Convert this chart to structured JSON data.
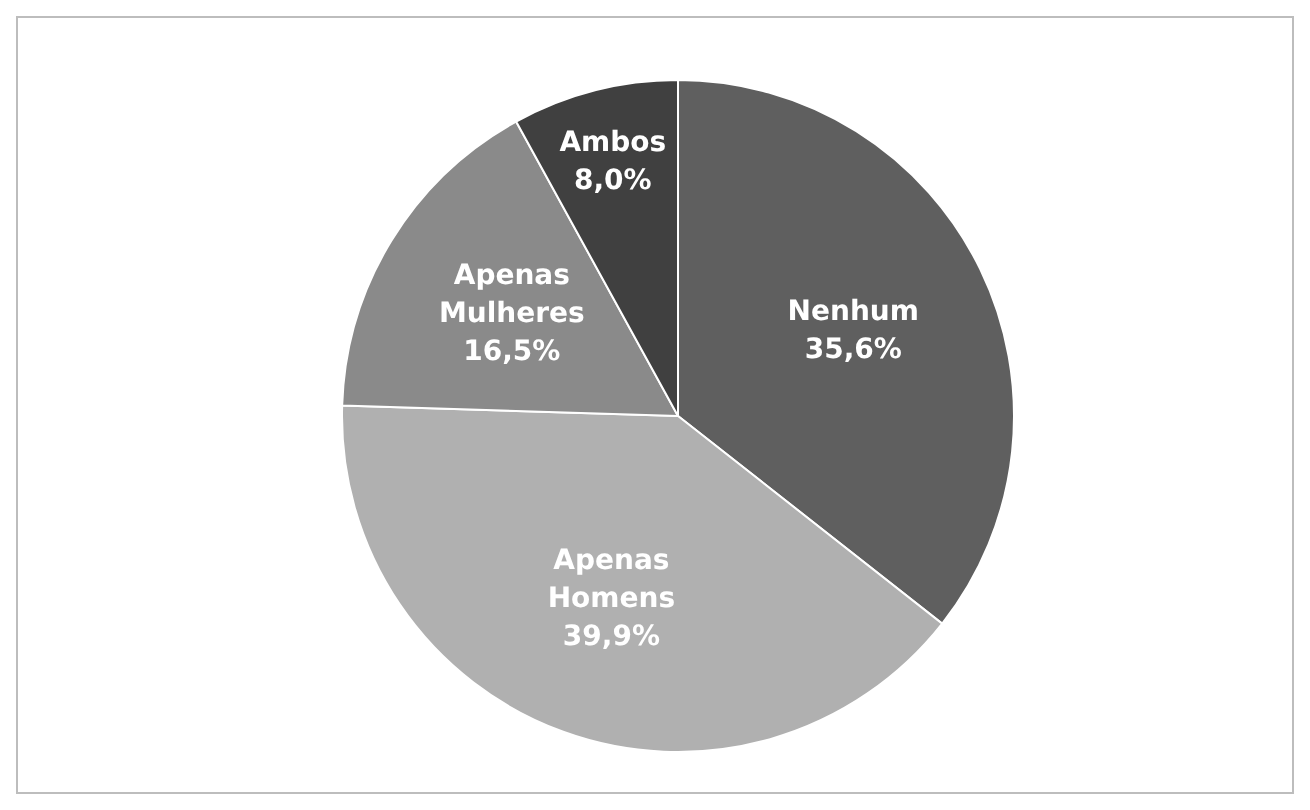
{
  "chart_data": {
    "type": "pie",
    "categories": [
      "Nenhum",
      "Apenas Homens",
      "Apenas Mulheres",
      "Ambos"
    ],
    "values": [
      35.6,
      39.9,
      16.5,
      8.0
    ],
    "value_labels": [
      "35,6%",
      "39,9%",
      "16,5%",
      "8,0%"
    ],
    "colors": [
      "#5f5f5f",
      "#b0b0b0",
      "#8a8a8a",
      "#404040"
    ],
    "legend": false
  }
}
